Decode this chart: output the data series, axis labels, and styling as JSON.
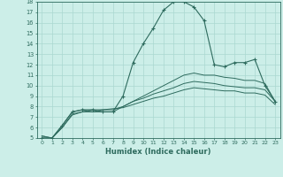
{
  "xlabel": "Humidex (Indice chaleur)",
  "background_color": "#cceee8",
  "grid_color": "#aad8d0",
  "line_color": "#2e6b5e",
  "xlim": [
    -0.5,
    23.5
  ],
  "ylim": [
    5,
    18
  ],
  "xticks": [
    0,
    1,
    2,
    3,
    4,
    5,
    6,
    7,
    8,
    9,
    10,
    11,
    12,
    13,
    14,
    15,
    16,
    17,
    18,
    19,
    20,
    21,
    22,
    23
  ],
  "yticks": [
    5,
    6,
    7,
    8,
    9,
    10,
    11,
    12,
    13,
    14,
    15,
    16,
    17,
    18
  ],
  "main_series": [
    5.0,
    5.0,
    6.2,
    7.5,
    7.7,
    7.7,
    7.5,
    7.5,
    9.0,
    12.2,
    14.0,
    15.5,
    17.2,
    18.0,
    18.0,
    17.5,
    16.2,
    12.0,
    11.8,
    12.2,
    12.2,
    12.5,
    10.0,
    8.5
  ],
  "extra_series": [
    [
      5.0,
      5.0,
      6.2,
      7.5,
      7.7,
      7.5,
      7.5,
      7.5,
      8.0,
      8.5,
      9.0,
      9.5,
      10.0,
      10.5,
      11.0,
      11.2,
      11.0,
      11.0,
      10.8,
      10.7,
      10.5,
      10.5,
      10.2,
      8.5
    ],
    [
      5.2,
      5.0,
      6.0,
      7.3,
      7.5,
      7.7,
      7.7,
      7.7,
      8.0,
      8.5,
      8.8,
      9.2,
      9.5,
      9.8,
      10.2,
      10.4,
      10.3,
      10.2,
      10.0,
      9.9,
      9.8,
      9.8,
      9.6,
      8.5
    ],
    [
      5.2,
      5.0,
      6.0,
      7.2,
      7.5,
      7.5,
      7.7,
      7.8,
      7.9,
      8.2,
      8.5,
      8.8,
      9.0,
      9.3,
      9.6,
      9.8,
      9.7,
      9.6,
      9.5,
      9.5,
      9.3,
      9.3,
      9.1,
      8.2
    ]
  ]
}
